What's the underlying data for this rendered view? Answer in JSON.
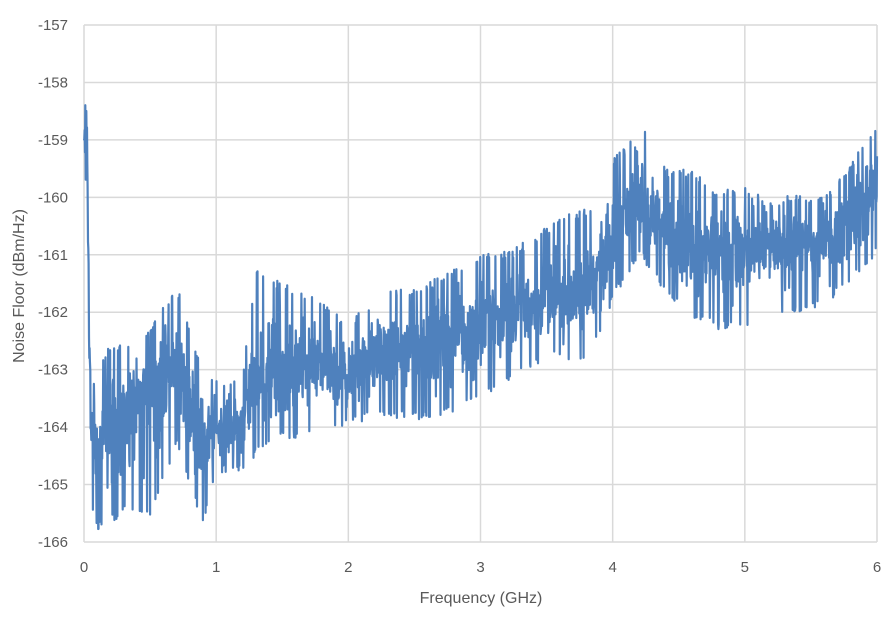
{
  "chart_data": {
    "type": "line",
    "title": "",
    "xlabel": "Frequency (GHz)",
    "ylabel": "Noise Floor (dBm/Hz)",
    "xlim": [
      0,
      6
    ],
    "ylim": [
      -166,
      -157
    ],
    "x_ticks": [
      "0",
      "1",
      "2",
      "3",
      "4",
      "5",
      "6"
    ],
    "y_ticks": [
      "-157",
      "-158",
      "-159",
      "-160",
      "-161",
      "-162",
      "-163",
      "-164",
      "-165",
      "-166"
    ],
    "grid": true,
    "legend": "none",
    "series_color": "#4F81BD",
    "series": [
      {
        "name": "Noise Floor",
        "description": "Dense noisy trace; values below are approximate band envelope (center, upper, lower) read from gridlines",
        "x": [
          0.0,
          0.02,
          0.05,
          0.1,
          0.2,
          0.3,
          0.5,
          0.7,
          0.9,
          1.0,
          1.2,
          1.3,
          1.5,
          1.75,
          2.0,
          2.25,
          2.5,
          2.75,
          3.0,
          3.25,
          3.5,
          3.75,
          3.9,
          4.0,
          4.1,
          4.2,
          4.4,
          4.6,
          4.8,
          5.0,
          5.2,
          5.4,
          5.6,
          5.8,
          6.0
        ],
        "center": [
          -159.2,
          -158.5,
          -164.0,
          -164.5,
          -164.0,
          -163.8,
          -163.3,
          -162.9,
          -164.2,
          -164.0,
          -163.9,
          -163.1,
          -163.0,
          -162.9,
          -163.1,
          -162.6,
          -162.7,
          -162.4,
          -162.2,
          -162.0,
          -161.8,
          -161.7,
          -161.3,
          -160.7,
          -160.3,
          -160.1,
          -160.6,
          -160.8,
          -160.9,
          -161.0,
          -160.8,
          -160.9,
          -160.8,
          -160.3,
          -159.8
        ],
        "upper": [
          -158.3,
          -157.8,
          -163.4,
          -163.0,
          -162.5,
          -162.6,
          -162.3,
          -161.5,
          -163.0,
          -163.2,
          -163.1,
          -161.2,
          -161.5,
          -161.7,
          -162.2,
          -161.6,
          -161.6,
          -161.3,
          -161.0,
          -160.9,
          -160.5,
          -160.2,
          -160.2,
          -159.3,
          -159.1,
          -158.5,
          -159.5,
          -159.5,
          -159.9,
          -159.8,
          -160.1,
          -159.9,
          -160.0,
          -159.4,
          -158.7
        ],
        "lower": [
          -160.2,
          -159.5,
          -165.3,
          -165.8,
          -165.7,
          -165.5,
          -165.6,
          -164.3,
          -165.7,
          -164.8,
          -164.8,
          -164.5,
          -164.2,
          -164.2,
          -164.0,
          -163.8,
          -163.9,
          -163.8,
          -163.5,
          -163.2,
          -162.8,
          -162.9,
          -162.5,
          -161.8,
          -161.4,
          -161.0,
          -161.7,
          -162.1,
          -162.3,
          -162.3,
          -162.0,
          -162.0,
          -161.9,
          -161.5,
          -161.0
        ]
      }
    ]
  }
}
